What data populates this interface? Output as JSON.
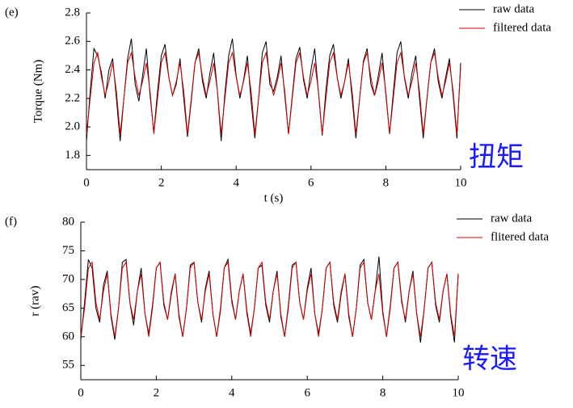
{
  "chart_data": [
    {
      "type": "line",
      "panel": "(e)",
      "ylabel": "Torque (Nm)",
      "xlabel": "t (s)",
      "annotation": "扭矩",
      "xlim": [
        0,
        10
      ],
      "xticks": [
        0,
        2,
        4,
        6,
        8,
        10
      ],
      "ylim": [
        1.7,
        2.8
      ],
      "yticks": [
        1.8,
        {
          "value": 2,
          "label": "2.0"
        },
        2.2,
        2.4,
        2.6,
        2.8
      ],
      "x": [
        0,
        0.1,
        0.2,
        0.3,
        0.4,
        0.5,
        0.6,
        0.7,
        0.8,
        0.9,
        1,
        1.1,
        1.2,
        1.3,
        1.4,
        1.5,
        1.6,
        1.7,
        1.8,
        1.9,
        2,
        2.1,
        2.2,
        2.3,
        2.4,
        2.5,
        2.6,
        2.7,
        2.8,
        2.9,
        3,
        3.1,
        3.2,
        3.3,
        3.4,
        3.5,
        3.6,
        3.7,
        3.8,
        3.9,
        4,
        4.1,
        4.2,
        4.3,
        4.4,
        4.5,
        4.6,
        4.7,
        4.8,
        4.9,
        5,
        5.1,
        5.2,
        5.3,
        5.4,
        5.5,
        5.6,
        5.7,
        5.8,
        5.9,
        6,
        6.1,
        6.2,
        6.3,
        6.4,
        6.5,
        6.6,
        6.7,
        6.8,
        6.9,
        7,
        7.1,
        7.2,
        7.3,
        7.4,
        7.5,
        7.6,
        7.7,
        7.8,
        7.9,
        8,
        8.1,
        8.2,
        8.3,
        8.4,
        8.5,
        8.6,
        8.7,
        8.8,
        8.9,
        9,
        9.1,
        9.2,
        9.3,
        9.4,
        9.5,
        9.6,
        9.7,
        9.8,
        9.9,
        10
      ],
      "series": [
        {
          "name": "raw data",
          "color": "#000000",
          "values": [
            1.9,
            2.25,
            2.55,
            2.5,
            2.38,
            2.2,
            2.4,
            2.48,
            2.2,
            1.9,
            2.2,
            2.48,
            2.62,
            2.3,
            2.18,
            2.36,
            2.55,
            2.22,
            1.96,
            2.25,
            2.5,
            2.58,
            2.35,
            2.22,
            2.3,
            2.48,
            2.2,
            1.93,
            2.18,
            2.45,
            2.55,
            2.32,
            2.2,
            2.38,
            2.52,
            2.25,
            1.9,
            2.24,
            2.5,
            2.62,
            2.36,
            2.2,
            2.33,
            2.5,
            2.18,
            1.92,
            2.2,
            2.52,
            2.6,
            2.3,
            2.25,
            2.35,
            2.5,
            2.22,
            1.95,
            2.22,
            2.48,
            2.56,
            2.33,
            2.2,
            2.4,
            2.55,
            2.24,
            1.94,
            2.26,
            2.5,
            2.58,
            2.35,
            2.2,
            2.32,
            2.48,
            2.2,
            1.92,
            2.2,
            2.46,
            2.55,
            2.3,
            2.22,
            2.36,
            2.52,
            2.23,
            1.95,
            2.24,
            2.52,
            2.6,
            2.34,
            2.2,
            2.38,
            2.5,
            2.2,
            1.92,
            2.2,
            2.45,
            2.55,
            2.32,
            2.2,
            2.35,
            2.48,
            2.22,
            1.92,
            2.45
          ]
        },
        {
          "name": "filtered data",
          "color": "#d40000",
          "values": [
            1.95,
            2.2,
            2.45,
            2.52,
            2.35,
            2.22,
            2.32,
            2.45,
            2.25,
            1.95,
            2.2,
            2.45,
            2.52,
            2.35,
            2.22,
            2.32,
            2.45,
            2.25,
            1.95,
            2.2,
            2.45,
            2.52,
            2.35,
            2.22,
            2.32,
            2.45,
            2.25,
            1.95,
            2.2,
            2.45,
            2.52,
            2.35,
            2.22,
            2.32,
            2.45,
            2.25,
            1.95,
            2.2,
            2.45,
            2.52,
            2.35,
            2.22,
            2.32,
            2.45,
            2.25,
            1.95,
            2.2,
            2.45,
            2.52,
            2.35,
            2.22,
            2.32,
            2.45,
            2.25,
            1.95,
            2.2,
            2.45,
            2.52,
            2.35,
            2.22,
            2.32,
            2.45,
            2.25,
            1.95,
            2.2,
            2.45,
            2.52,
            2.35,
            2.22,
            2.32,
            2.45,
            2.25,
            1.95,
            2.2,
            2.45,
            2.52,
            2.35,
            2.22,
            2.32,
            2.45,
            2.25,
            1.95,
            2.2,
            2.45,
            2.52,
            2.35,
            2.22,
            2.32,
            2.45,
            2.25,
            1.95,
            2.2,
            2.45,
            2.52,
            2.35,
            2.22,
            2.32,
            2.45,
            2.25,
            1.95,
            2.42
          ]
        }
      ]
    },
    {
      "type": "line",
      "panel": "(f)",
      "ylabel": "r (rav)",
      "annotation": "转速",
      "xlim": [
        0,
        10
      ],
      "xticks": [
        0,
        2,
        4,
        6,
        8,
        10
      ],
      "ylim": [
        52.5,
        80
      ],
      "yticks": [
        55,
        60,
        65,
        70,
        75,
        80
      ],
      "x": [
        0,
        0.1,
        0.2,
        0.3,
        0.4,
        0.5,
        0.6,
        0.7,
        0.8,
        0.9,
        1,
        1.1,
        1.2,
        1.3,
        1.4,
        1.5,
        1.6,
        1.7,
        1.8,
        1.9,
        2,
        2.1,
        2.2,
        2.3,
        2.4,
        2.5,
        2.6,
        2.7,
        2.8,
        2.9,
        3,
        3.1,
        3.2,
        3.3,
        3.4,
        3.5,
        3.6,
        3.7,
        3.8,
        3.9,
        4,
        4.1,
        4.2,
        4.3,
        4.4,
        4.5,
        4.6,
        4.7,
        4.8,
        4.9,
        5,
        5.1,
        5.2,
        5.3,
        5.4,
        5.5,
        5.6,
        5.7,
        5.8,
        5.9,
        6,
        6.1,
        6.2,
        6.3,
        6.4,
        6.5,
        6.6,
        6.7,
        6.8,
        6.9,
        7,
        7.1,
        7.2,
        7.3,
        7.4,
        7.5,
        7.6,
        7.7,
        7.8,
        7.9,
        8,
        8.1,
        8.2,
        8.3,
        8.4,
        8.5,
        8.6,
        8.7,
        8.8,
        8.9,
        9,
        9.1,
        9.2,
        9.3,
        9.4,
        9.5,
        9.6,
        9.7,
        9.8,
        9.9,
        10
      ],
      "series": [
        {
          "name": "raw data",
          "color": "#000000",
          "values": [
            59.5,
            66,
            73.5,
            72,
            65,
            62.5,
            69,
            71.5,
            63.5,
            59.5,
            65,
            73,
            73.5,
            66,
            62,
            68,
            72,
            64,
            60.5,
            65.5,
            72,
            73,
            65.5,
            63,
            67.5,
            71,
            63.5,
            60,
            65,
            72.5,
            73,
            66,
            62.5,
            68.5,
            71.5,
            64,
            60,
            64.5,
            72,
            73.5,
            66.5,
            63,
            68,
            71,
            64.5,
            60.5,
            65,
            72,
            72.5,
            65.5,
            62.5,
            68,
            71.5,
            63.5,
            60,
            65.5,
            72.5,
            73,
            66,
            63,
            68.5,
            72,
            64,
            60.5,
            65,
            72,
            73,
            65.5,
            62.5,
            67.5,
            71,
            63.5,
            60,
            65,
            72.5,
            73.5,
            66,
            63,
            68,
            74,
            64.5,
            60,
            65.5,
            72,
            73,
            66.5,
            62.5,
            68,
            71.5,
            64,
            59,
            65,
            72,
            73,
            65.5,
            62.5,
            68,
            71,
            63.5,
            59,
            71
          ]
        },
        {
          "name": "flitered data",
          "color": "#d40000",
          "values": [
            60,
            65,
            72,
            73,
            66,
            63,
            68,
            71,
            64,
            60,
            65,
            72,
            73,
            66,
            63,
            68,
            71,
            64,
            60,
            65,
            72,
            73,
            66,
            63,
            68,
            71,
            64,
            60,
            65,
            72,
            73,
            66,
            63,
            68,
            71,
            64,
            60,
            65,
            72,
            73,
            66,
            63,
            68,
            71,
            64,
            60,
            65,
            72,
            73,
            66,
            63,
            68,
            71,
            64,
            60,
            65,
            72,
            73,
            66,
            63,
            68,
            71,
            64,
            60,
            65,
            72,
            73,
            66,
            63,
            68,
            71,
            64,
            60,
            65,
            72,
            73,
            66,
            63,
            68,
            71,
            64,
            60,
            65,
            72,
            73,
            66,
            63,
            68,
            71,
            64,
            60,
            65,
            72,
            73,
            66,
            63,
            68,
            71,
            64,
            60,
            71
          ]
        }
      ]
    }
  ]
}
